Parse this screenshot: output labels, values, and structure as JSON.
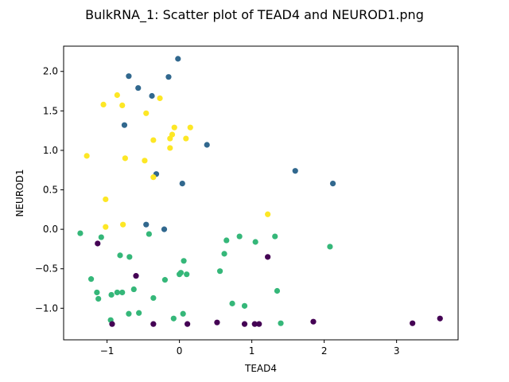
{
  "chart_data": {
    "type": "scatter",
    "title": "BulkRNA_1: Scatter plot of TEAD4 and NEUROD1.png",
    "xlabel": "TEAD4",
    "ylabel": "NEUROD1",
    "xlim": [
      -1.6,
      3.85
    ],
    "ylim": [
      -1.4,
      2.32
    ],
    "xticks": [
      -1,
      0,
      1,
      2,
      3
    ],
    "xtick_labels": [
      "−1",
      "0",
      "1",
      "2",
      "3"
    ],
    "yticks": [
      -1.0,
      -0.5,
      0.0,
      0.5,
      1.0,
      1.5,
      2.0
    ],
    "ytick_labels": [
      "−1.0",
      "−0.5",
      "0.0",
      "0.5",
      "1.0",
      "1.5",
      "2.0"
    ],
    "grid": false,
    "series": [
      {
        "color": "#31688e",
        "points": [
          [
            -0.02,
            2.16
          ],
          [
            -0.7,
            1.94
          ],
          [
            -0.15,
            1.93
          ],
          [
            -0.57,
            1.79
          ],
          [
            -0.38,
            1.69
          ],
          [
            -0.76,
            1.32
          ],
          [
            0.38,
            1.07
          ],
          [
            -0.32,
            0.7
          ],
          [
            1.6,
            0.74
          ],
          [
            2.12,
            0.58
          ],
          [
            0.04,
            0.58
          ],
          [
            -0.46,
            0.06
          ],
          [
            -0.21,
            0.0
          ]
        ]
      },
      {
        "color": "#fde725",
        "points": [
          [
            -0.86,
            1.7
          ],
          [
            -1.05,
            1.58
          ],
          [
            -0.79,
            1.57
          ],
          [
            -0.27,
            1.66
          ],
          [
            -0.46,
            1.47
          ],
          [
            -0.07,
            1.29
          ],
          [
            0.15,
            1.29
          ],
          [
            -0.1,
            1.2
          ],
          [
            -0.13,
            1.15
          ],
          [
            0.09,
            1.15
          ],
          [
            -0.36,
            1.13
          ],
          [
            -0.13,
            1.03
          ],
          [
            -1.28,
            0.93
          ],
          [
            -0.75,
            0.9
          ],
          [
            -0.48,
            0.87
          ],
          [
            -0.36,
            0.66
          ],
          [
            -1.02,
            0.38
          ],
          [
            1.22,
            0.19
          ],
          [
            -0.78,
            0.06
          ],
          [
            -1.02,
            0.03
          ]
        ]
      },
      {
        "color": "#35b779",
        "points": [
          [
            -1.37,
            -0.05
          ],
          [
            -0.42,
            -0.06
          ],
          [
            -1.08,
            -0.1
          ],
          [
            0.83,
            -0.09
          ],
          [
            1.32,
            -0.09
          ],
          [
            0.65,
            -0.14
          ],
          [
            1.05,
            -0.16
          ],
          [
            2.08,
            -0.22
          ],
          [
            0.62,
            -0.31
          ],
          [
            -0.82,
            -0.33
          ],
          [
            -0.69,
            -0.35
          ],
          [
            0.06,
            -0.4
          ],
          [
            0.56,
            -0.53
          ],
          [
            0.02,
            -0.55
          ],
          [
            0.0,
            -0.57
          ],
          [
            0.1,
            -0.57
          ],
          [
            -1.22,
            -0.63
          ],
          [
            -0.2,
            -0.64
          ],
          [
            -0.63,
            -0.76
          ],
          [
            1.35,
            -0.78
          ],
          [
            -0.86,
            -0.8
          ],
          [
            -0.79,
            -0.8
          ],
          [
            -1.14,
            -0.8
          ],
          [
            -0.94,
            -0.83
          ],
          [
            -0.36,
            -0.87
          ],
          [
            -1.12,
            -0.88
          ],
          [
            0.73,
            -0.94
          ],
          [
            0.9,
            -0.97
          ],
          [
            -0.56,
            -1.06
          ],
          [
            -0.7,
            -1.07
          ],
          [
            0.05,
            -1.07
          ],
          [
            -0.95,
            -1.15
          ],
          [
            -0.08,
            -1.13
          ],
          [
            1.4,
            -1.19
          ]
        ]
      },
      {
        "color": "#440154",
        "points": [
          [
            -1.13,
            -0.18
          ],
          [
            1.22,
            -0.35
          ],
          [
            -0.6,
            -0.59
          ],
          [
            -0.93,
            -1.2
          ],
          [
            -0.36,
            -1.2
          ],
          [
            0.11,
            -1.2
          ],
          [
            0.52,
            -1.18
          ],
          [
            0.9,
            -1.2
          ],
          [
            1.04,
            -1.2
          ],
          [
            1.1,
            -1.2
          ],
          [
            1.85,
            -1.17
          ],
          [
            3.22,
            -1.19
          ],
          [
            3.6,
            -1.13
          ]
        ]
      }
    ]
  }
}
